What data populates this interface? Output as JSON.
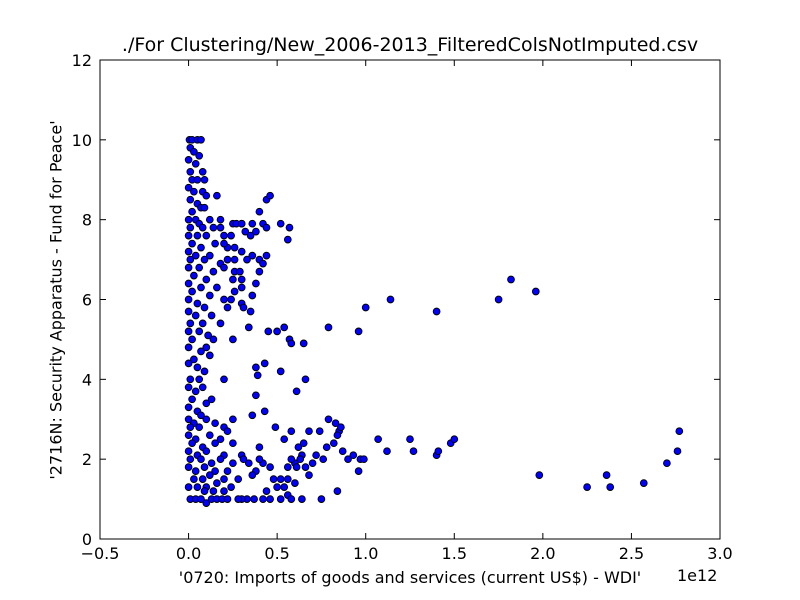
{
  "chart_data": {
    "type": "scatter",
    "title": "./For Clustering/New_2006-2013_FilteredColsNotImputed.csv",
    "xlabel": "'0720: Imports of goods and services  (current US$) - WDI'",
    "ylabel": "'2716N: Security Apparatus - Fund for Peace'",
    "x_offset_label": "1e12",
    "xlim": [
      -0.5,
      3.0
    ],
    "ylim": [
      0,
      12
    ],
    "xticks": [
      -0.5,
      0.0,
      0.5,
      1.0,
      1.5,
      2.0,
      2.5,
      3.0
    ],
    "xtick_labels": [
      "−0.5",
      "0.0",
      "0.5",
      "1.0",
      "1.5",
      "2.0",
      "2.5",
      "3.0"
    ],
    "yticks": [
      0,
      2,
      4,
      6,
      8,
      10,
      12
    ],
    "ytick_labels": [
      "0",
      "2",
      "4",
      "6",
      "8",
      "10",
      "12"
    ],
    "marker_color": "#0000ff",
    "marker_edge": "#000000",
    "grid": false,
    "legend": "none",
    "x_unit_note": "x values in units of 1e12",
    "points": [
      [
        0.005,
        10.0
      ],
      [
        0.02,
        10.0
      ],
      [
        0.05,
        10.0
      ],
      [
        0.07,
        10.0
      ],
      [
        0.01,
        9.8
      ],
      [
        0.03,
        9.7
      ],
      [
        0.0,
        9.5
      ],
      [
        0.04,
        9.4
      ],
      [
        0.06,
        9.6
      ],
      [
        0.01,
        9.2
      ],
      [
        0.08,
        9.2
      ],
      [
        0.02,
        9.0
      ],
      [
        0.05,
        9.0
      ],
      [
        0.09,
        9.0
      ],
      [
        0.0,
        8.8
      ],
      [
        0.03,
        8.7
      ],
      [
        0.08,
        8.7
      ],
      [
        0.1,
        8.6
      ],
      [
        0.01,
        8.5
      ],
      [
        0.05,
        8.4
      ],
      [
        0.07,
        8.3
      ],
      [
        0.02,
        8.2
      ],
      [
        0.09,
        8.3
      ],
      [
        0.0,
        8.0
      ],
      [
        0.04,
        8.0
      ],
      [
        0.06,
        7.9
      ],
      [
        0.12,
        8.0
      ],
      [
        0.18,
        8.0
      ],
      [
        0.01,
        7.8
      ],
      [
        0.08,
        7.8
      ],
      [
        0.14,
        7.8
      ],
      [
        0.25,
        7.9
      ],
      [
        0.3,
        7.9
      ],
      [
        0.0,
        7.6
      ],
      [
        0.05,
        7.6
      ],
      [
        0.1,
        7.6
      ],
      [
        0.2,
        7.6
      ],
      [
        0.35,
        7.6
      ],
      [
        0.02,
        7.4
      ],
      [
        0.07,
        7.3
      ],
      [
        0.15,
        7.4
      ],
      [
        0.22,
        7.3
      ],
      [
        0.0,
        7.2
      ],
      [
        0.04,
        7.1
      ],
      [
        0.12,
        7.1
      ],
      [
        0.3,
        7.2
      ],
      [
        0.01,
        7.0
      ],
      [
        0.09,
        7.0
      ],
      [
        0.18,
        6.9
      ],
      [
        0.26,
        7.0
      ],
      [
        0.0,
        6.8
      ],
      [
        0.06,
        6.8
      ],
      [
        0.14,
        6.7
      ],
      [
        0.2,
        6.8
      ],
      [
        0.03,
        6.6
      ],
      [
        0.1,
        6.5
      ],
      [
        0.25,
        6.5
      ],
      [
        0.0,
        6.4
      ],
      [
        0.07,
        6.3
      ],
      [
        0.16,
        6.3
      ],
      [
        0.3,
        6.3
      ],
      [
        0.02,
        6.2
      ],
      [
        0.12,
        6.1
      ],
      [
        0.2,
        6.0
      ],
      [
        0.0,
        6.0
      ],
      [
        0.05,
        5.9
      ],
      [
        0.09,
        5.8
      ],
      [
        0.22,
        5.8
      ],
      [
        0.3,
        5.9
      ],
      [
        0.0,
        5.7
      ],
      [
        0.04,
        5.6
      ],
      [
        0.13,
        5.6
      ],
      [
        0.01,
        5.4
      ],
      [
        0.08,
        5.4
      ],
      [
        0.18,
        5.4
      ],
      [
        0.0,
        5.2
      ],
      [
        0.06,
        5.2
      ],
      [
        0.11,
        5.1
      ],
      [
        0.02,
        5.0
      ],
      [
        0.14,
        5.0
      ],
      [
        0.25,
        5.0
      ],
      [
        0.0,
        4.8
      ],
      [
        0.07,
        4.7
      ],
      [
        0.1,
        4.8
      ],
      [
        0.03,
        4.5
      ],
      [
        0.12,
        4.6
      ],
      [
        0.0,
        4.4
      ],
      [
        0.05,
        4.3
      ],
      [
        0.09,
        4.2
      ],
      [
        0.01,
        4.0
      ],
      [
        0.06,
        4.0
      ],
      [
        0.2,
        4.0
      ],
      [
        0.0,
        3.8
      ],
      [
        0.04,
        3.7
      ],
      [
        0.08,
        3.8
      ],
      [
        0.02,
        3.5
      ],
      [
        0.1,
        3.4
      ],
      [
        0.13,
        3.5
      ],
      [
        0.0,
        3.3
      ],
      [
        0.05,
        3.2
      ],
      [
        0.07,
        3.1
      ],
      [
        0.0,
        3.0
      ],
      [
        0.03,
        2.9
      ],
      [
        0.1,
        3.0
      ],
      [
        0.15,
        2.9
      ],
      [
        0.01,
        2.8
      ],
      [
        0.06,
        2.8
      ],
      [
        0.2,
        2.8
      ],
      [
        0.25,
        3.0
      ],
      [
        0.0,
        2.6
      ],
      [
        0.04,
        2.5
      ],
      [
        0.12,
        2.6
      ],
      [
        0.18,
        2.5
      ],
      [
        0.22,
        2.7
      ],
      [
        0.02,
        2.4
      ],
      [
        0.08,
        2.3
      ],
      [
        0.15,
        2.4
      ],
      [
        0.25,
        2.4
      ],
      [
        0.0,
        2.2
      ],
      [
        0.05,
        2.1
      ],
      [
        0.1,
        2.2
      ],
      [
        0.2,
        2.1
      ],
      [
        0.3,
        2.1
      ],
      [
        0.01,
        2.0
      ],
      [
        0.07,
        2.0
      ],
      [
        0.13,
        1.9
      ],
      [
        0.18,
        2.0
      ],
      [
        0.25,
        1.9
      ],
      [
        0.0,
        1.8
      ],
      [
        0.04,
        1.7
      ],
      [
        0.09,
        1.8
      ],
      [
        0.15,
        1.7
      ],
      [
        0.22,
        1.7
      ],
      [
        0.03,
        1.5
      ],
      [
        0.08,
        1.5
      ],
      [
        0.12,
        1.6
      ],
      [
        0.2,
        1.5
      ],
      [
        0.28,
        1.5
      ],
      [
        0.0,
        1.3
      ],
      [
        0.05,
        1.3
      ],
      [
        0.1,
        1.3
      ],
      [
        0.16,
        1.4
      ],
      [
        0.24,
        1.3
      ],
      [
        0.01,
        1.0
      ],
      [
        0.04,
        1.0
      ],
      [
        0.07,
        1.0
      ],
      [
        0.1,
        0.9
      ],
      [
        0.13,
        1.0
      ],
      [
        0.16,
        1.0
      ],
      [
        0.19,
        1.0
      ],
      [
        0.22,
        1.0
      ],
      [
        0.09,
        1.2
      ],
      [
        0.14,
        1.2
      ],
      [
        0.2,
        1.2
      ],
      [
        0.16,
        8.6
      ],
      [
        0.18,
        7.8
      ],
      [
        0.2,
        7.4
      ],
      [
        0.24,
        7.6
      ],
      [
        0.26,
        7.3
      ],
      [
        0.27,
        7.9
      ],
      [
        0.3,
        7.9
      ],
      [
        0.32,
        7.7
      ],
      [
        0.36,
        7.9
      ],
      [
        0.38,
        7.7
      ],
      [
        0.4,
        8.2
      ],
      [
        0.42,
        7.9
      ],
      [
        0.44,
        8.5
      ],
      [
        0.46,
        8.6
      ],
      [
        0.44,
        7.8
      ],
      [
        0.52,
        7.9
      ],
      [
        0.56,
        7.5
      ],
      [
        0.57,
        7.8
      ],
      [
        0.22,
        7.0
      ],
      [
        0.26,
        6.7
      ],
      [
        0.29,
        6.7
      ],
      [
        0.33,
        7.0
      ],
      [
        0.36,
        7.1
      ],
      [
        0.4,
        7.0
      ],
      [
        0.42,
        6.9
      ],
      [
        0.44,
        7.1
      ],
      [
        0.3,
        6.5
      ],
      [
        0.38,
        6.4
      ],
      [
        0.4,
        6.7
      ],
      [
        0.24,
        6.0
      ],
      [
        0.26,
        6.2
      ],
      [
        0.31,
        5.8
      ],
      [
        0.36,
        6.1
      ],
      [
        0.35,
        5.7
      ],
      [
        0.34,
        5.3
      ],
      [
        0.45,
        5.2
      ],
      [
        0.5,
        5.2
      ],
      [
        0.54,
        5.3
      ],
      [
        0.57,
        5.0
      ],
      [
        0.58,
        4.9
      ],
      [
        0.65,
        4.9
      ],
      [
        0.38,
        4.3
      ],
      [
        0.39,
        4.1
      ],
      [
        0.43,
        4.4
      ],
      [
        0.52,
        4.2
      ],
      [
        0.38,
        3.6
      ],
      [
        0.61,
        3.7
      ],
      [
        0.66,
        4.0
      ],
      [
        0.36,
        3.1
      ],
      [
        0.43,
        3.2
      ],
      [
        0.49,
        2.8
      ],
      [
        0.54,
        2.5
      ],
      [
        0.58,
        2.7
      ],
      [
        0.62,
        2.3
      ],
      [
        0.65,
        2.4
      ],
      [
        0.68,
        2.7
      ],
      [
        0.72,
        2.1
      ],
      [
        0.76,
        2.0
      ],
      [
        0.74,
        2.7
      ],
      [
        0.79,
        3.0
      ],
      [
        0.78,
        2.3
      ],
      [
        0.82,
        2.4
      ],
      [
        0.83,
        2.9
      ],
      [
        0.85,
        2.7
      ],
      [
        0.86,
        2.8
      ],
      [
        0.84,
        2.6
      ],
      [
        0.87,
        2.2
      ],
      [
        0.9,
        2.0
      ],
      [
        0.93,
        2.1
      ],
      [
        0.97,
        2.0
      ],
      [
        0.96,
        1.7
      ],
      [
        0.99,
        2.0
      ],
      [
        0.64,
        2.1
      ],
      [
        0.6,
        1.9
      ],
      [
        0.56,
        1.8
      ],
      [
        0.58,
        2.0
      ],
      [
        0.61,
        1.8
      ],
      [
        0.63,
        2.0
      ],
      [
        0.66,
        1.8
      ],
      [
        0.7,
        1.9
      ],
      [
        0.68,
        1.6
      ],
      [
        0.6,
        1.4
      ],
      [
        0.56,
        1.5
      ],
      [
        0.52,
        1.5
      ],
      [
        0.48,
        1.5
      ],
      [
        0.46,
        1.8
      ],
      [
        0.42,
        1.9
      ],
      [
        0.4,
        2.0
      ],
      [
        0.38,
        1.7
      ],
      [
        0.36,
        1.6
      ],
      [
        0.34,
        1.9
      ],
      [
        0.31,
        2.0
      ],
      [
        0.44,
        1.2
      ],
      [
        0.5,
        1.3
      ],
      [
        0.54,
        1.3
      ],
      [
        0.64,
        1.0
      ],
      [
        0.56,
        1.1
      ],
      [
        0.58,
        1.0
      ],
      [
        0.42,
        1.0
      ],
      [
        0.37,
        1.0
      ],
      [
        0.33,
        1.0
      ],
      [
        0.3,
        1.0
      ],
      [
        0.28,
        1.0
      ],
      [
        0.46,
        1.0
      ],
      [
        0.52,
        1.0
      ],
      [
        0.75,
        1.0
      ],
      [
        0.84,
        1.2
      ],
      [
        0.4,
        2.3
      ],
      [
        0.79,
        5.3
      ],
      [
        0.96,
        5.2
      ],
      [
        1.0,
        5.8
      ],
      [
        1.14,
        6.0
      ],
      [
        1.4,
        5.7
      ],
      [
        1.75,
        6.0
      ],
      [
        1.82,
        6.5
      ],
      [
        1.96,
        6.2
      ],
      [
        1.07,
        2.5
      ],
      [
        1.12,
        2.2
      ],
      [
        1.25,
        2.5
      ],
      [
        1.27,
        2.2
      ],
      [
        1.4,
        2.1
      ],
      [
        1.41,
        2.2
      ],
      [
        1.48,
        2.4
      ],
      [
        1.5,
        2.5
      ],
      [
        1.98,
        1.6
      ],
      [
        2.25,
        1.3
      ],
      [
        2.36,
        1.6
      ],
      [
        2.38,
        1.3
      ],
      [
        2.57,
        1.4
      ],
      [
        2.7,
        1.9
      ],
      [
        2.76,
        2.2
      ],
      [
        2.77,
        2.7
      ]
    ]
  }
}
